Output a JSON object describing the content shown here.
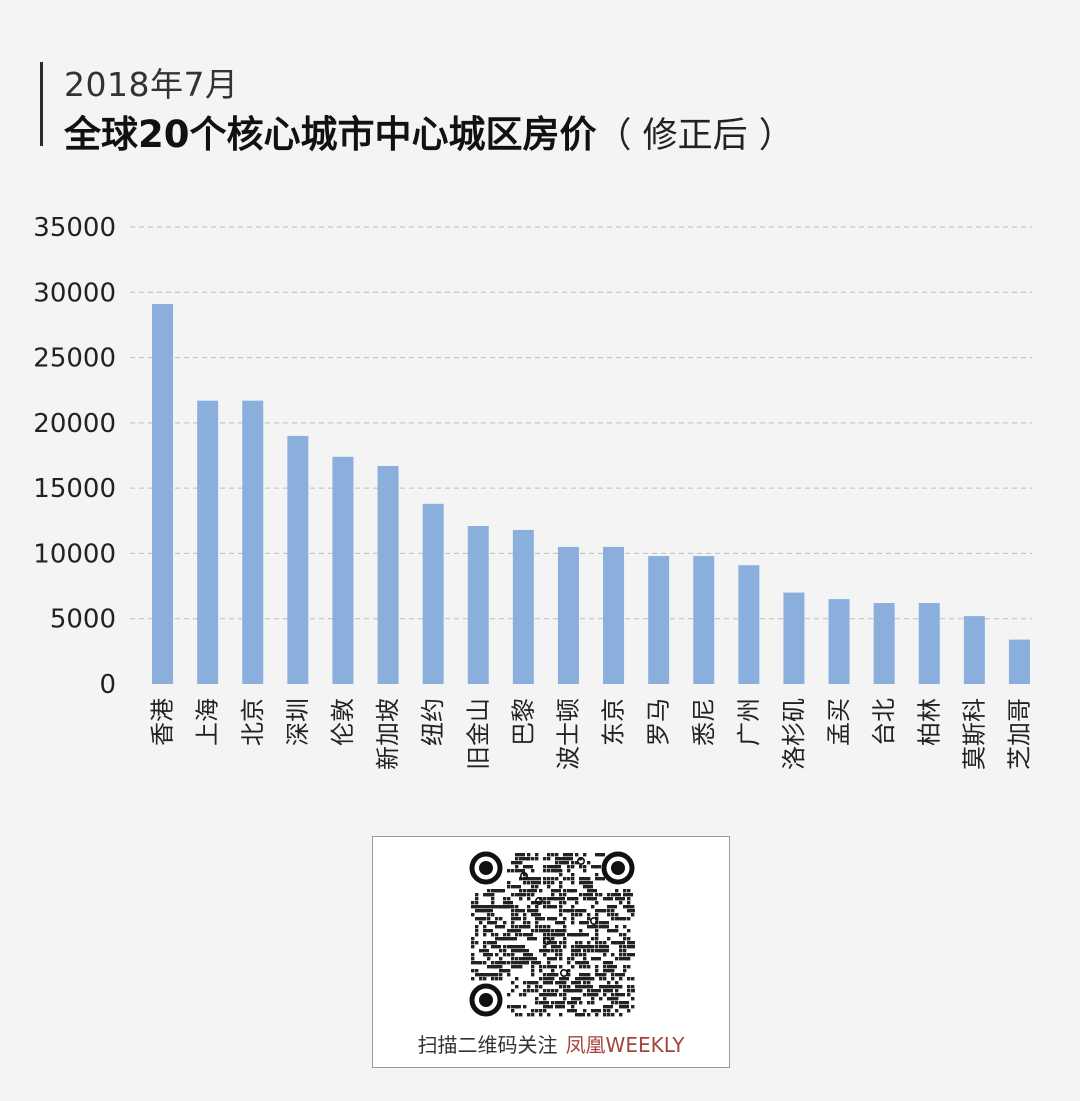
{
  "header": {
    "subtitle": "2018年7月",
    "title_main": "全球20个核心城市中心城区房价",
    "title_paren": "（ 修正后 ）"
  },
  "chart_data": {
    "type": "bar",
    "title": "全球20个核心城市中心城区房价（ 修正后 ）",
    "subtitle": "2018年7月",
    "xlabel": "",
    "ylabel": "",
    "categories": [
      "香港",
      "上海",
      "北京",
      "深圳",
      "伦敦",
      "新加坡",
      "纽约",
      "旧金山",
      "巴黎",
      "波士顿",
      "东京",
      "罗马",
      "悉尼",
      "广州",
      "洛杉矶",
      "孟买",
      "台北",
      "柏林",
      "莫斯科",
      "芝加哥"
    ],
    "values": [
      29100,
      21700,
      21700,
      19000,
      17400,
      16700,
      13800,
      12100,
      11800,
      10500,
      10500,
      9800,
      9800,
      9100,
      7000,
      6500,
      6200,
      6200,
      5200,
      3400
    ],
    "ylim": [
      0,
      35000
    ],
    "yticks": [
      0,
      5000,
      10000,
      15000,
      20000,
      25000,
      30000,
      35000
    ],
    "bar_color": "#8aafdc",
    "grid": true,
    "legend": "none"
  },
  "footer": {
    "qr_caption": "扫描二维码关注",
    "brand": "凤凰WEEKLY",
    "brand_color": "#a5443d"
  }
}
